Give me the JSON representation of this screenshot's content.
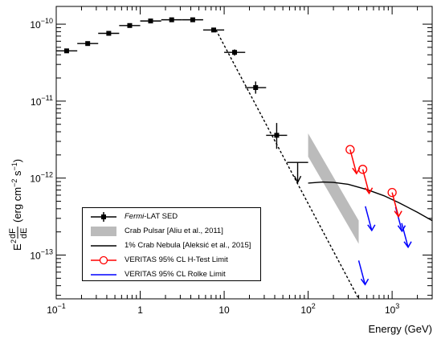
{
  "chart_data": {
    "type": "scatter",
    "xlabel": "Energy (GeV)",
    "ylabel_parts": {
      "e2": "E",
      "sup2": "2",
      "dF": "dF",
      "dE": "dE",
      "units_pre": "(erg cm",
      "units_sup1": "−2",
      "units_mid": " s",
      "units_sup2": "−1",
      "units_post": ")"
    },
    "xscale": "log",
    "yscale": "log",
    "xlim": [
      0.1,
      3000
    ],
    "ylim": [
      2.7e-14,
      1.7e-10
    ],
    "x_ticks": [
      {
        "v": 0.1,
        "base": "10",
        "exp": "−1"
      },
      {
        "v": 1,
        "base": "1",
        "exp": ""
      },
      {
        "v": 10,
        "base": "10",
        "exp": ""
      },
      {
        "v": 100,
        "base": "10",
        "exp": "2"
      },
      {
        "v": 1000,
        "base": "10",
        "exp": "3"
      }
    ],
    "y_ticks": [
      {
        "v": 1e-13,
        "base": "10",
        "exp": "−13"
      },
      {
        "v": 1e-12,
        "base": "10",
        "exp": "−12"
      },
      {
        "v": 1e-11,
        "base": "10",
        "exp": "−11"
      },
      {
        "v": 1e-10,
        "base": "10",
        "exp": "−10"
      }
    ],
    "fermi_points": [
      {
        "x": 0.133,
        "xlo": 0.1,
        "xhi": 0.178,
        "y": 4.5e-11,
        "ylo": 4.3e-11,
        "yhi": 4.7e-11
      },
      {
        "x": 0.237,
        "xlo": 0.178,
        "xhi": 0.316,
        "y": 5.6e-11,
        "ylo": 5.35e-11,
        "yhi": 5.85e-11
      },
      {
        "x": 0.422,
        "xlo": 0.316,
        "xhi": 0.562,
        "y": 7.6e-11,
        "ylo": 7.3e-11,
        "yhi": 7.9e-11
      },
      {
        "x": 0.75,
        "xlo": 0.562,
        "xhi": 1.0,
        "y": 9.6e-11,
        "ylo": 9.25e-11,
        "yhi": 9.95e-11
      },
      {
        "x": 1.33,
        "xlo": 1.0,
        "xhi": 1.78,
        "y": 1.1e-10,
        "ylo": 1.06e-10,
        "yhi": 1.14e-10
      },
      {
        "x": 2.37,
        "xlo": 1.78,
        "xhi": 3.16,
        "y": 1.14e-10,
        "ylo": 1.1e-10,
        "yhi": 1.18e-10
      },
      {
        "x": 4.22,
        "xlo": 3.16,
        "xhi": 5.62,
        "y": 1.14e-10,
        "ylo": 1.1e-10,
        "yhi": 1.18e-10
      },
      {
        "x": 7.5,
        "xlo": 5.62,
        "xhi": 10.0,
        "y": 8.4e-11,
        "ylo": 8e-11,
        "yhi": 8.8e-11
      },
      {
        "x": 13.3,
        "xlo": 10.0,
        "xhi": 17.8,
        "y": 4.3e-11,
        "ylo": 3.9e-11,
        "yhi": 4.7e-11
      },
      {
        "x": 23.7,
        "xlo": 17.8,
        "xhi": 31.6,
        "y": 1.5e-11,
        "ylo": 1.25e-11,
        "yhi": 1.8e-11
      },
      {
        "x": 42.2,
        "xlo": 31.6,
        "xhi": 56.2,
        "y": 3.6e-12,
        "ylo": 2.4e-12,
        "yhi": 5.2e-12
      }
    ],
    "fermi_upper_limit": {
      "x": 75,
      "xlo": 56.2,
      "xhi": 100,
      "y": 1.6e-12
    },
    "fermi_fit": {
      "x": [
        8,
        400
      ],
      "y": [
        8.4e-11,
        2.7e-14
      ]
    },
    "crab_pulsar_band": {
      "x": [
        100,
        400
      ],
      "upper": [
        3.8e-12,
        2.8e-13
      ],
      "lower": [
        1.9e-12,
        1.4e-13
      ]
    },
    "crab_nebula_1pct": {
      "x": [
        100,
        150,
        200,
        300,
        500,
        800,
        1200,
        2000,
        3000
      ],
      "y": [
        8.6e-13,
        8.9e-13,
        8.8e-13,
        8.3e-13,
        7.1e-13,
        5.9e-13,
        4.8e-13,
        3.6e-13,
        2.8e-13
      ]
    },
    "veritas_htest_limits": [
      {
        "x": 316,
        "y": 2.35e-12
      },
      {
        "x": 447,
        "y": 1.3e-12
      },
      {
        "x": 1000,
        "y": 6.5e-13
      }
    ],
    "veritas_rolke_limits": [
      {
        "x": 400,
        "y": 8.5e-14
      },
      {
        "x": 480,
        "y": 4.3e-13
      },
      {
        "x": 1100,
        "y": 4.2e-13
      },
      {
        "x": 1300,
        "y": 2.6e-13
      }
    ],
    "legend": [
      {
        "key": "fermi",
        "italic": "Fermi",
        "rest": "-LAT SED"
      },
      {
        "key": "pulsar",
        "italic": "",
        "rest": "Crab Pulsar [Aliu et al., 2011]"
      },
      {
        "key": "nebula",
        "italic": "",
        "rest": "1% Crab Nebula [Aleksić et al., 2015]"
      },
      {
        "key": "htest",
        "italic": "",
        "rest": "VERITAS 95% CL H-Test Limit"
      },
      {
        "key": "rolke",
        "italic": "",
        "rest": "VERITAS 95% CL Rolke Limit"
      }
    ],
    "colors": {
      "fermi": "#000000",
      "band": "#bbbbbb",
      "nebula": "#000000",
      "htest": "#ff0000",
      "rolke": "#0000ff"
    },
    "legend_position": "bottom-left"
  }
}
